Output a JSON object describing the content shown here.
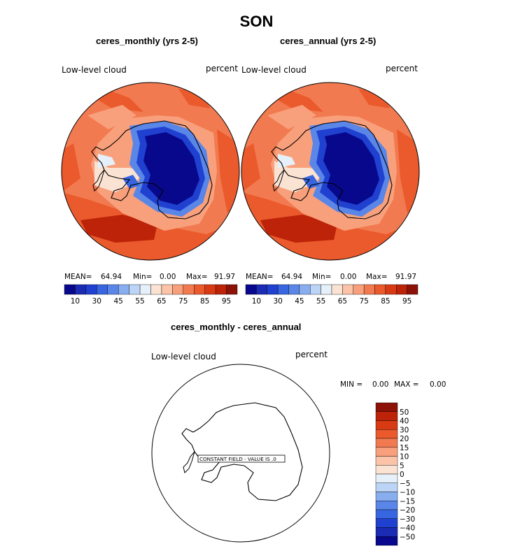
{
  "chart_data": [
    {
      "type": "heatmap",
      "projection": "south-polar-stereographic",
      "season_title": "SON",
      "title": "ceres_monthly (yrs 2-5)",
      "variable": "Low-level cloud",
      "units": "percent",
      "stats": {
        "mean_label": "MEAN=",
        "mean": "64.94",
        "min_label": "Min=",
        "min": "0.00",
        "max_label": "Max=",
        "max": "91.97"
      },
      "colorbar": {
        "orientation": "horizontal",
        "tick_labels": [
          "10",
          "30",
          "45",
          "55",
          "65",
          "75",
          "85",
          "95"
        ],
        "levels": [
          10,
          20,
          30,
          40,
          45,
          50,
          55,
          60,
          65,
          70,
          75,
          80,
          85,
          90,
          95
        ],
        "colors": [
          "#08088c",
          "#1b2bb4",
          "#2040d0",
          "#3866e0",
          "#5a86e8",
          "#88aef0",
          "#bcd4f6",
          "#e6f0fa",
          "#fbe3d3",
          "#fbc4a8",
          "#f8a07c",
          "#f27a50",
          "#ea5a2c",
          "#d83a14",
          "#bc2308",
          "#8c1208"
        ]
      }
    },
    {
      "type": "heatmap",
      "projection": "south-polar-stereographic",
      "title": "ceres_annual (yrs 2-5)",
      "variable": "Low-level cloud",
      "units": "percent",
      "stats": {
        "mean_label": "MEAN=",
        "mean": "64.94",
        "min_label": "Min=",
        "min": "0.00",
        "max_label": "Max=",
        "max": "91.97"
      },
      "colorbar": {
        "orientation": "horizontal",
        "tick_labels": [
          "10",
          "30",
          "45",
          "55",
          "65",
          "75",
          "85",
          "95"
        ],
        "levels": [
          10,
          20,
          30,
          40,
          45,
          50,
          55,
          60,
          65,
          70,
          75,
          80,
          85,
          90,
          95
        ]
      }
    },
    {
      "type": "heatmap",
      "projection": "south-polar-stereographic",
      "title": "ceres_monthly - ceres_annual",
      "variable": "Low-level cloud",
      "units": "percent",
      "stats": {
        "min_label": "MIN =",
        "min": "0.00",
        "max_label": "MAX =",
        "max": "0.00"
      },
      "annotation": "CONSTANT FIELD - VALUE IS .0",
      "colorbar": {
        "orientation": "vertical",
        "tick_labels": [
          "50",
          "40",
          "30",
          "20",
          "15",
          "10",
          "5",
          "0",
          "−5",
          "−10",
          "−15",
          "−20",
          "−30",
          "−40",
          "−50"
        ],
        "colors": [
          "#8c1208",
          "#bc2308",
          "#d83a14",
          "#ea5a2c",
          "#f27a50",
          "#f8a07c",
          "#fbc4a8",
          "#fbe3d3",
          "#e6f0fa",
          "#bcd4f6",
          "#88aef0",
          "#5a86e8",
          "#3866e0",
          "#2040d0",
          "#1b2bb4",
          "#08088c"
        ]
      }
    }
  ]
}
